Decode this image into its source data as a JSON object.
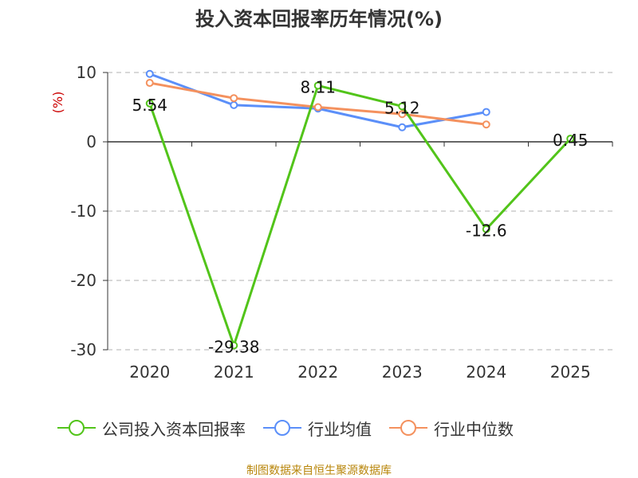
{
  "title": "投入资本回报率历年情况(%)",
  "source": "制图数据来自恒生聚源数据库",
  "chart_data": {
    "type": "line",
    "title": "投入资本回报率历年情况(%)",
    "ylabel": "(%)",
    "xlabel": "",
    "categories": [
      "2020",
      "2021",
      "2022",
      "2023",
      "2024",
      "2025"
    ],
    "ylim": [
      -30,
      10
    ],
    "yticks": [
      10,
      0,
      -10,
      -20,
      -30
    ],
    "ytick_labels": [
      "10",
      "0",
      "-10",
      "-20",
      "-30"
    ],
    "grid": true,
    "legend_position": "bottom",
    "series": [
      {
        "name": "公司投入资本回报率",
        "color": "#52c41a",
        "values": [
          5.54,
          -29.38,
          8.11,
          5.12,
          -12.6,
          0.45
        ],
        "labels": [
          "5.54",
          "-29.38",
          "8.11",
          "5.12",
          "-12.6",
          "0.45"
        ]
      },
      {
        "name": "行业均值",
        "color": "#5b8ff9",
        "values": [
          9.8,
          5.3,
          4.8,
          2.1,
          4.3,
          null
        ]
      },
      {
        "name": "行业中位数",
        "color": "#f4915e",
        "values": [
          8.5,
          6.3,
          5.0,
          4.0,
          2.5,
          null
        ]
      }
    ]
  }
}
